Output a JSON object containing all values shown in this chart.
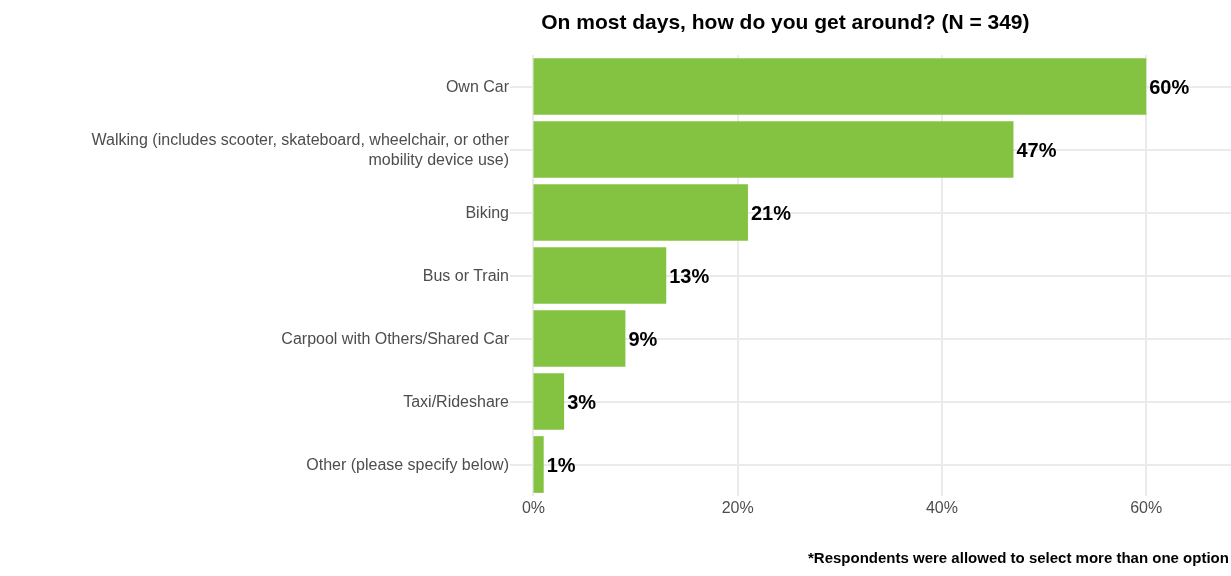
{
  "chart_data": {
    "type": "bar",
    "orientation": "horizontal",
    "title": "On most days, how do you get around? (N = 349)",
    "categories": [
      "Own Car",
      "Walking (includes scooter, skateboard, wheelchair, or other mobility device use)",
      "Biking",
      "Bus or Train",
      "Carpool with Others/Shared Car",
      "Taxi/Rideshare",
      "Other (please specify below)"
    ],
    "values": [
      60,
      47,
      21,
      13,
      9,
      3,
      1
    ],
    "color": "#84c341",
    "xlim": [
      -2.3,
      68.3
    ],
    "xticks": [
      {
        "value": 0,
        "label": "0%"
      },
      {
        "value": 20,
        "label": "20%"
      },
      {
        "value": 40,
        "label": "40%"
      },
      {
        "value": 60,
        "label": "60%"
      }
    ],
    "value_labels": [
      "60%",
      "47%",
      "21%",
      "13%",
      "9%",
      "3%",
      "1%"
    ],
    "grid": true,
    "annotations": [
      "*Respondents were allowed to select more than one option"
    ]
  }
}
